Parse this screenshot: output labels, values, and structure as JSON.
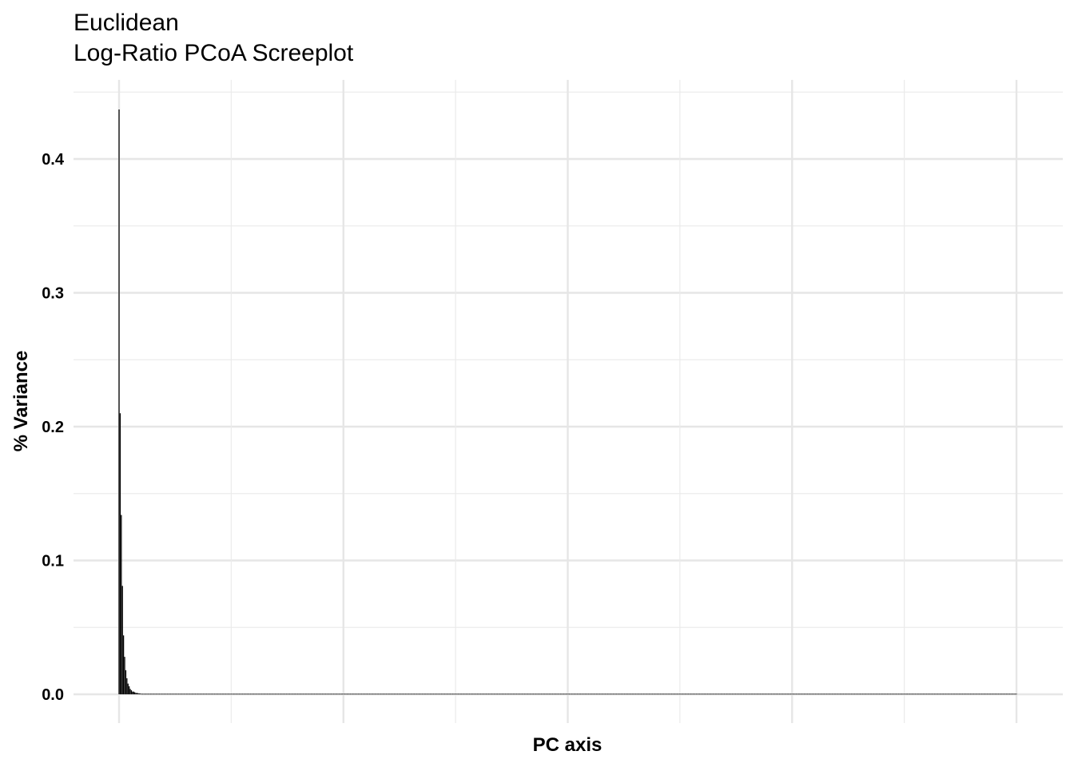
{
  "chart_data": {
    "type": "bar",
    "title": "Euclidean",
    "subtitle": "Log-Ratio PCoA Screeplot",
    "xlabel": "PC axis",
    "ylabel": "% Variance",
    "ylim": [
      -0.018,
      0.45
    ],
    "yticks": [
      0.0,
      0.1,
      0.2,
      0.3,
      0.4
    ],
    "ytick_labels": [
      "0.0",
      "0.1",
      "0.2",
      "0.3",
      "0.4"
    ],
    "grid": true,
    "x_tick_labels_shown": false,
    "n_axes": 800,
    "values": [
      0.437,
      0.21,
      0.134,
      0.081,
      0.044,
      0.028,
      0.018,
      0.012,
      0.008,
      0.006,
      0.004,
      0.003,
      0.002,
      0.002,
      0.0015,
      0.001,
      0.001,
      0.0008,
      0.0006,
      0.0005
    ],
    "remaining_value": 0.0,
    "bar_color": "#000000"
  }
}
